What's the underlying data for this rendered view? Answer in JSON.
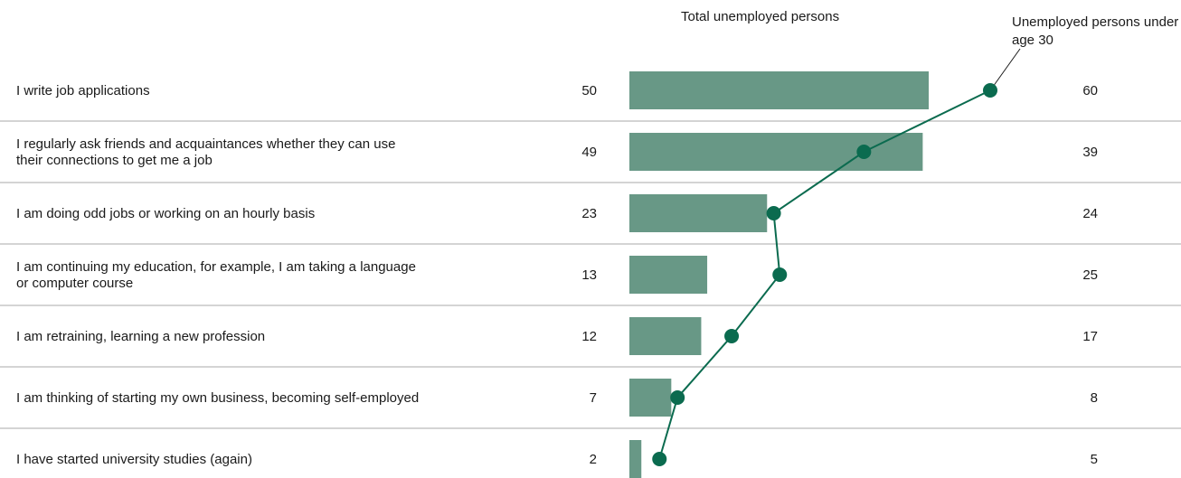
{
  "chart_data": {
    "type": "bar",
    "categories": [
      "I write job applications",
      "I regularly ask friends and acquaintances whether they can use their connections to get me a job",
      "I am doing odd jobs or working on an hourly basis",
      "I am continuing my education, for example, I am taking a language or computer course",
      "I am retraining, learning a new profession",
      "I am thinking of starting my own business, becoming self-employed",
      "I have started university studies (again)"
    ],
    "category_lines": [
      [
        "I write job applications"
      ],
      [
        "I regularly ask friends and acquaintances whether they can use",
        "their connections to get me a job"
      ],
      [
        "I am doing odd jobs or working on an hourly basis"
      ],
      [
        "I am continuing my education, for example, I am taking a language",
        "or computer course"
      ],
      [
        "I am retraining, learning a new profession"
      ],
      [
        "I am thinking of starting my own business, becoming self-employed"
      ],
      [
        "I have started university studies (again)"
      ]
    ],
    "series": [
      {
        "name": "Total unemployed persons",
        "type": "bar",
        "values": [
          50,
          49,
          23,
          13,
          12,
          7,
          2
        ]
      },
      {
        "name": "Unemployed persons under age 30",
        "type": "line",
        "values": [
          60,
          39,
          24,
          25,
          17,
          8,
          5
        ]
      }
    ],
    "colors": {
      "bar": "#689886",
      "line": "#0b6b4f",
      "text": "#1a1a1a",
      "grid": "#aaaaaa"
    }
  }
}
